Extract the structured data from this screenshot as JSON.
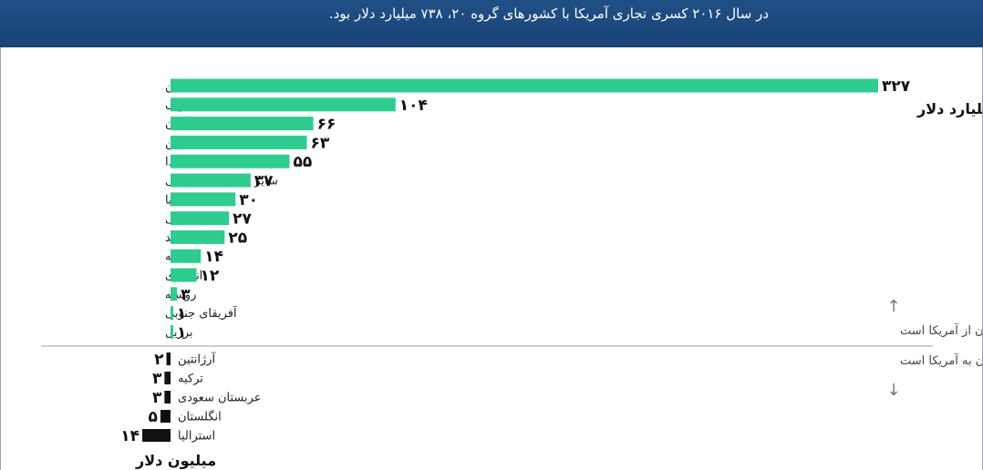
{
  "header": {
    "title": "در سال ۲۰۱۶ کسری تجاری آمریکا با کشورهای گروه ۲۰، ۷۳۸ میلیارد دلار بود."
  },
  "colors": {
    "header_bg": "#1f4f86",
    "surplus_bar": "#2ecc8f",
    "deficit_bar": "#111111"
  },
  "chart_data": [
    {
      "type": "bar",
      "orientation": "horizontal",
      "unit_label": "میلیارد دلار",
      "categories": [
        "چین",
        "مکزیک",
        "آلمان",
        "ژاپن",
        "کانادا",
        "سایر کشورهای اروپایی",
        "ایتالیا",
        "کره جنوبی",
        "هند",
        "فرانسه",
        "اندونزی",
        "روسیه",
        "آفریقای جنوبی",
        "برزیل"
      ],
      "values": [
        327,
        104,
        66,
        63,
        55,
        37,
        30,
        27,
        25,
        14,
        12,
        3,
        1,
        1
      ],
      "value_labels": [
        "۳۲۷",
        "۱۰۴",
        "۶۶",
        "۶۳",
        "۵۵",
        "۳۷",
        "۳۰",
        "۲۷",
        "۲۵",
        "۱۴",
        "۱۲",
        "۳",
        "۱",
        "۱"
      ],
      "xlim": [
        0,
        327
      ],
      "grid": false,
      "legend": "none",
      "annotation": "صادرات این کشورها به آمریکا بیش از وارداتشان از آمریکا است"
    },
    {
      "type": "bar",
      "orientation": "horizontal",
      "direction": "leftward",
      "unit_label": "میلیون دلار",
      "categories": [
        "آرژانتین",
        "ترکیه",
        "عربستان سعودی",
        "انگلستان",
        "استرالیا"
      ],
      "values": [
        2,
        3,
        3,
        5,
        14
      ],
      "value_labels": [
        "۲",
        "۳",
        "۳",
        "۵",
        "۱۴"
      ],
      "xlim": [
        0,
        14
      ],
      "grid": false,
      "legend": "none",
      "annotation": "واردات این کشورها  از آمریکا بیش از صادراتشان به آمریکا است"
    }
  ]
}
